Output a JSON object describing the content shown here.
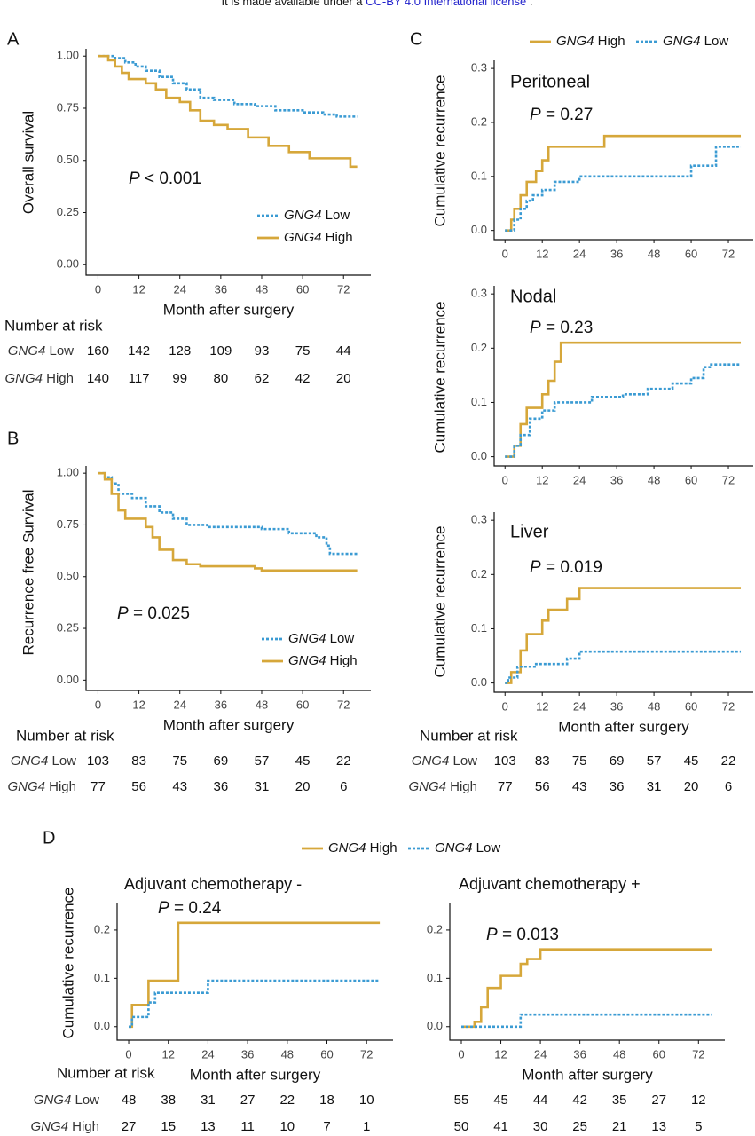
{
  "header": {
    "before": "It is made available under a ",
    "link": "CC-BY 4.0 International license",
    "after": " ."
  },
  "panels": [
    "A",
    "B",
    "C",
    "D"
  ],
  "chart_data": [
    {
      "type": "line",
      "step": "post",
      "ylabel": "Overall survival",
      "xlabel": "Month after surgery",
      "annotation": "P < 0.001",
      "legend": "inside-bottom-right",
      "xlim": [
        -3.5,
        80
      ],
      "ylim": [
        -0.05,
        1.035
      ],
      "xticks": [
        0,
        12,
        24,
        36,
        48,
        60,
        72
      ],
      "yticks": [
        {
          "value": 0,
          "label": "0.00"
        },
        {
          "value": 0.25,
          "label": "0.25"
        },
        {
          "value": 0.5,
          "label": "0.50"
        },
        {
          "value": 0.75,
          "label": "0.75"
        },
        {
          "value": 1,
          "label": "1.00"
        }
      ],
      "series": [
        {
          "name": "GNG4 Low",
          "color": "#3b9bd3",
          "dash": true,
          "x": [
            0,
            3,
            5,
            8,
            11,
            14,
            18,
            22,
            26,
            30,
            34,
            40,
            46,
            52,
            60,
            66,
            70,
            76
          ],
          "values": [
            1,
            1,
            0.99,
            0.97,
            0.95,
            0.93,
            0.9,
            0.87,
            0.84,
            0.8,
            0.79,
            0.77,
            0.76,
            0.74,
            0.73,
            0.72,
            0.71,
            0.71
          ]
        },
        {
          "name": "GNG4 High",
          "color": "#d6a73a",
          "dash": false,
          "x": [
            0,
            3,
            5,
            7,
            9,
            14,
            17,
            20,
            24,
            27,
            30,
            34,
            38,
            44,
            50,
            56,
            62,
            72,
            74,
            76
          ],
          "values": [
            1,
            0.98,
            0.95,
            0.92,
            0.89,
            0.87,
            0.84,
            0.8,
            0.78,
            0.74,
            0.69,
            0.67,
            0.65,
            0.61,
            0.57,
            0.54,
            0.51,
            0.51,
            0.47,
            0.47
          ]
        }
      ],
      "risk_table": {
        "title": "Number at risk",
        "rows": [
          {
            "name": "GNG4 Low",
            "values": [
              160,
              142,
              128,
              109,
              93,
              75,
              44
            ]
          },
          {
            "name": "GNG4 High",
            "values": [
              140,
              117,
              99,
              80,
              62,
              42,
              20
            ]
          }
        ]
      }
    },
    {
      "type": "line",
      "step": "post",
      "ylabel": "Recurrence free Survival",
      "xlabel": "Month after surgery",
      "annotation": "P = 0.025",
      "legend": "inside-bottom-right",
      "xlim": [
        -3.5,
        80
      ],
      "ylim": [
        -0.05,
        1.035
      ],
      "xticks": [
        0,
        12,
        24,
        36,
        48,
        60,
        72
      ],
      "yticks": [
        {
          "value": 0,
          "label": "0.00"
        },
        {
          "value": 0.25,
          "label": "0.25"
        },
        {
          "value": 0.5,
          "label": "0.50"
        },
        {
          "value": 0.75,
          "label": "0.75"
        },
        {
          "value": 1,
          "label": "1.00"
        }
      ],
      "series": [
        {
          "name": "GNG4 Low",
          "color": "#3b9bd3",
          "dash": true,
          "x": [
            0,
            2,
            4,
            6,
            10,
            14,
            18,
            22,
            26,
            32,
            48,
            56,
            64,
            67,
            68,
            76
          ],
          "values": [
            1,
            0.98,
            0.95,
            0.9,
            0.88,
            0.84,
            0.81,
            0.78,
            0.75,
            0.74,
            0.73,
            0.71,
            0.69,
            0.65,
            0.61,
            0.61
          ]
        },
        {
          "name": "GNG4 High",
          "color": "#d6a73a",
          "dash": false,
          "x": [
            0,
            2,
            4,
            6,
            8,
            14,
            16,
            18,
            22,
            26,
            30,
            46,
            48,
            76
          ],
          "values": [
            1,
            0.97,
            0.9,
            0.82,
            0.78,
            0.74,
            0.69,
            0.63,
            0.58,
            0.56,
            0.55,
            0.54,
            0.53,
            0.53
          ]
        }
      ],
      "risk_table": {
        "title": "Number at risk",
        "rows": [
          {
            "name": "GNG4 Low",
            "values": [
              103,
              83,
              75,
              69,
              57,
              45,
              22
            ]
          },
          {
            "name": "GNG4 High",
            "values": [
              77,
              56,
              43,
              36,
              31,
              20,
              6
            ]
          }
        ]
      }
    },
    {
      "type": "line",
      "step": "post",
      "title": "Peritoneal",
      "ylabel": "Cumulative recurrence",
      "annotation": "P = 0.27",
      "legend": "top",
      "xlim": [
        -3.5,
        80
      ],
      "ylim": [
        -0.017,
        0.315
      ],
      "xticks": [
        0,
        12,
        24,
        36,
        48,
        60,
        72
      ],
      "yticks": [
        {
          "value": 0,
          "label": "0.0"
        },
        0.1,
        0.2,
        0.3
      ],
      "series": [
        {
          "name": "GNG4 High",
          "color": "#d6a73a",
          "dash": false,
          "x": [
            0,
            2,
            3,
            5,
            7,
            10,
            12,
            14,
            32,
            76
          ],
          "values": [
            0,
            0.02,
            0.04,
            0.065,
            0.09,
            0.11,
            0.13,
            0.155,
            0.175,
            0.175
          ]
        },
        {
          "name": "GNG4 Low",
          "color": "#3b9bd3",
          "dash": true,
          "x": [
            0,
            3,
            5,
            7,
            9,
            12,
            16,
            24,
            60,
            68,
            76
          ],
          "values": [
            0,
            0.02,
            0.04,
            0.055,
            0.065,
            0.075,
            0.09,
            0.1,
            0.12,
            0.155,
            0.155
          ]
        }
      ]
    },
    {
      "type": "line",
      "step": "post",
      "title": "Nodal",
      "ylabel": "Cumulative recurrence",
      "annotation": "P = 0.23",
      "xlim": [
        -3.5,
        80
      ],
      "ylim": [
        -0.017,
        0.315
      ],
      "xticks": [
        0,
        12,
        24,
        36,
        48,
        60,
        72
      ],
      "yticks": [
        {
          "value": 0,
          "label": "0.0"
        },
        0.1,
        0.2,
        0.3
      ],
      "series": [
        {
          "name": "GNG4 High",
          "color": "#d6a73a",
          "dash": false,
          "x": [
            0,
            3,
            5,
            7,
            12,
            14,
            16,
            18,
            76
          ],
          "values": [
            0,
            0.02,
            0.06,
            0.09,
            0.115,
            0.14,
            0.175,
            0.21,
            0.21
          ]
        },
        {
          "name": "GNG4 Low",
          "color": "#3b9bd3",
          "dash": true,
          "x": [
            0,
            3,
            5,
            8,
            12,
            16,
            28,
            38,
            46,
            54,
            60,
            64,
            66,
            76
          ],
          "values": [
            0,
            0.02,
            0.04,
            0.07,
            0.085,
            0.1,
            0.11,
            0.115,
            0.125,
            0.135,
            0.145,
            0.165,
            0.17,
            0.17
          ]
        }
      ]
    },
    {
      "type": "line",
      "step": "post",
      "title": "Liver",
      "ylabel": "Cumulative recurrence",
      "xlabel": "Month after surgery",
      "annotation": "P = 0.019",
      "xlim": [
        -3.5,
        80
      ],
      "ylim": [
        -0.017,
        0.315
      ],
      "xticks": [
        0,
        12,
        24,
        36,
        48,
        60,
        72
      ],
      "yticks": [
        {
          "value": 0,
          "label": "0.0"
        },
        0.1,
        0.2,
        0.3
      ],
      "series": [
        {
          "name": "GNG4 High",
          "color": "#d6a73a",
          "dash": false,
          "x": [
            0,
            2,
            5,
            7,
            12,
            14,
            20,
            24,
            76
          ],
          "values": [
            0,
            0.02,
            0.06,
            0.09,
            0.115,
            0.135,
            0.155,
            0.175,
            0.175
          ]
        },
        {
          "name": "GNG4 Low",
          "color": "#3b9bd3",
          "dash": true,
          "x": [
            0,
            1,
            4,
            10,
            20,
            24,
            76
          ],
          "values": [
            0,
            0.01,
            0.03,
            0.035,
            0.045,
            0.058,
            0.058
          ]
        }
      ],
      "risk_table": {
        "title": "Number at risk",
        "rows": [
          {
            "name": "GNG4 Low",
            "values": [
              103,
              83,
              75,
              69,
              57,
              45,
              22
            ]
          },
          {
            "name": "GNG4 High",
            "values": [
              77,
              56,
              43,
              36,
              31,
              20,
              6
            ]
          }
        ]
      }
    },
    {
      "type": "line",
      "step": "post",
      "title": "Adjuvant chemotherapy -",
      "ylabel": "Cumulative recurrence",
      "xlabel": "Month after surgery",
      "annotation": "P = 0.24",
      "legend": "top",
      "xlim": [
        -3.5,
        80
      ],
      "ylim": [
        -0.028,
        0.255
      ],
      "xticks": [
        0,
        12,
        24,
        36,
        48,
        60,
        72
      ],
      "yticks": [
        {
          "value": 0,
          "label": "0.0"
        },
        0.1,
        0.2
      ],
      "series": [
        {
          "name": "GNG4 High",
          "color": "#d6a73a",
          "dash": false,
          "x": [
            0,
            1,
            6,
            15,
            76
          ],
          "values": [
            0,
            0.045,
            0.095,
            0.215,
            0.215
          ]
        },
        {
          "name": "GNG4 Low",
          "color": "#3b9bd3",
          "dash": true,
          "x": [
            0,
            1,
            6,
            8,
            24,
            76
          ],
          "values": [
            0,
            0.02,
            0.05,
            0.07,
            0.095,
            0.095
          ]
        }
      ],
      "risk_table": {
        "title": "Number at risk",
        "rows": [
          {
            "name": "GNG4 Low",
            "values": [
              48,
              38,
              31,
              27,
              22,
              18,
              10
            ]
          },
          {
            "name": "GNG4 High",
            "values": [
              27,
              15,
              13,
              11,
              10,
              7,
              1
            ]
          }
        ]
      }
    },
    {
      "type": "line",
      "step": "post",
      "title": "Adjuvant chemotherapy +",
      "xlabel": "Month after surgery",
      "annotation": "P = 0.013",
      "xlim": [
        -3.5,
        80
      ],
      "ylim": [
        -0.028,
        0.255
      ],
      "xticks": [
        0,
        12,
        24,
        36,
        48,
        60,
        72
      ],
      "yticks": [
        {
          "value": 0,
          "label": "0.0"
        },
        0.1,
        0.2
      ],
      "series": [
        {
          "name": "GNG4 High",
          "color": "#d6a73a",
          "dash": false,
          "x": [
            0,
            4,
            6,
            8,
            12,
            18,
            20,
            24,
            76
          ],
          "values": [
            0,
            0.01,
            0.04,
            0.08,
            0.105,
            0.13,
            0.14,
            0.16,
            0.16
          ]
        },
        {
          "name": "GNG4 Low",
          "color": "#3b9bd3",
          "dash": true,
          "x": [
            0,
            18,
            76
          ],
          "values": [
            0,
            0.025,
            0.025
          ]
        }
      ],
      "risk_table": {
        "rows": [
          {
            "values": [
              55,
              45,
              44,
              42,
              35,
              27,
              12
            ]
          },
          {
            "values": [
              50,
              41,
              30,
              25,
              21,
              13,
              5
            ]
          }
        ]
      }
    }
  ]
}
